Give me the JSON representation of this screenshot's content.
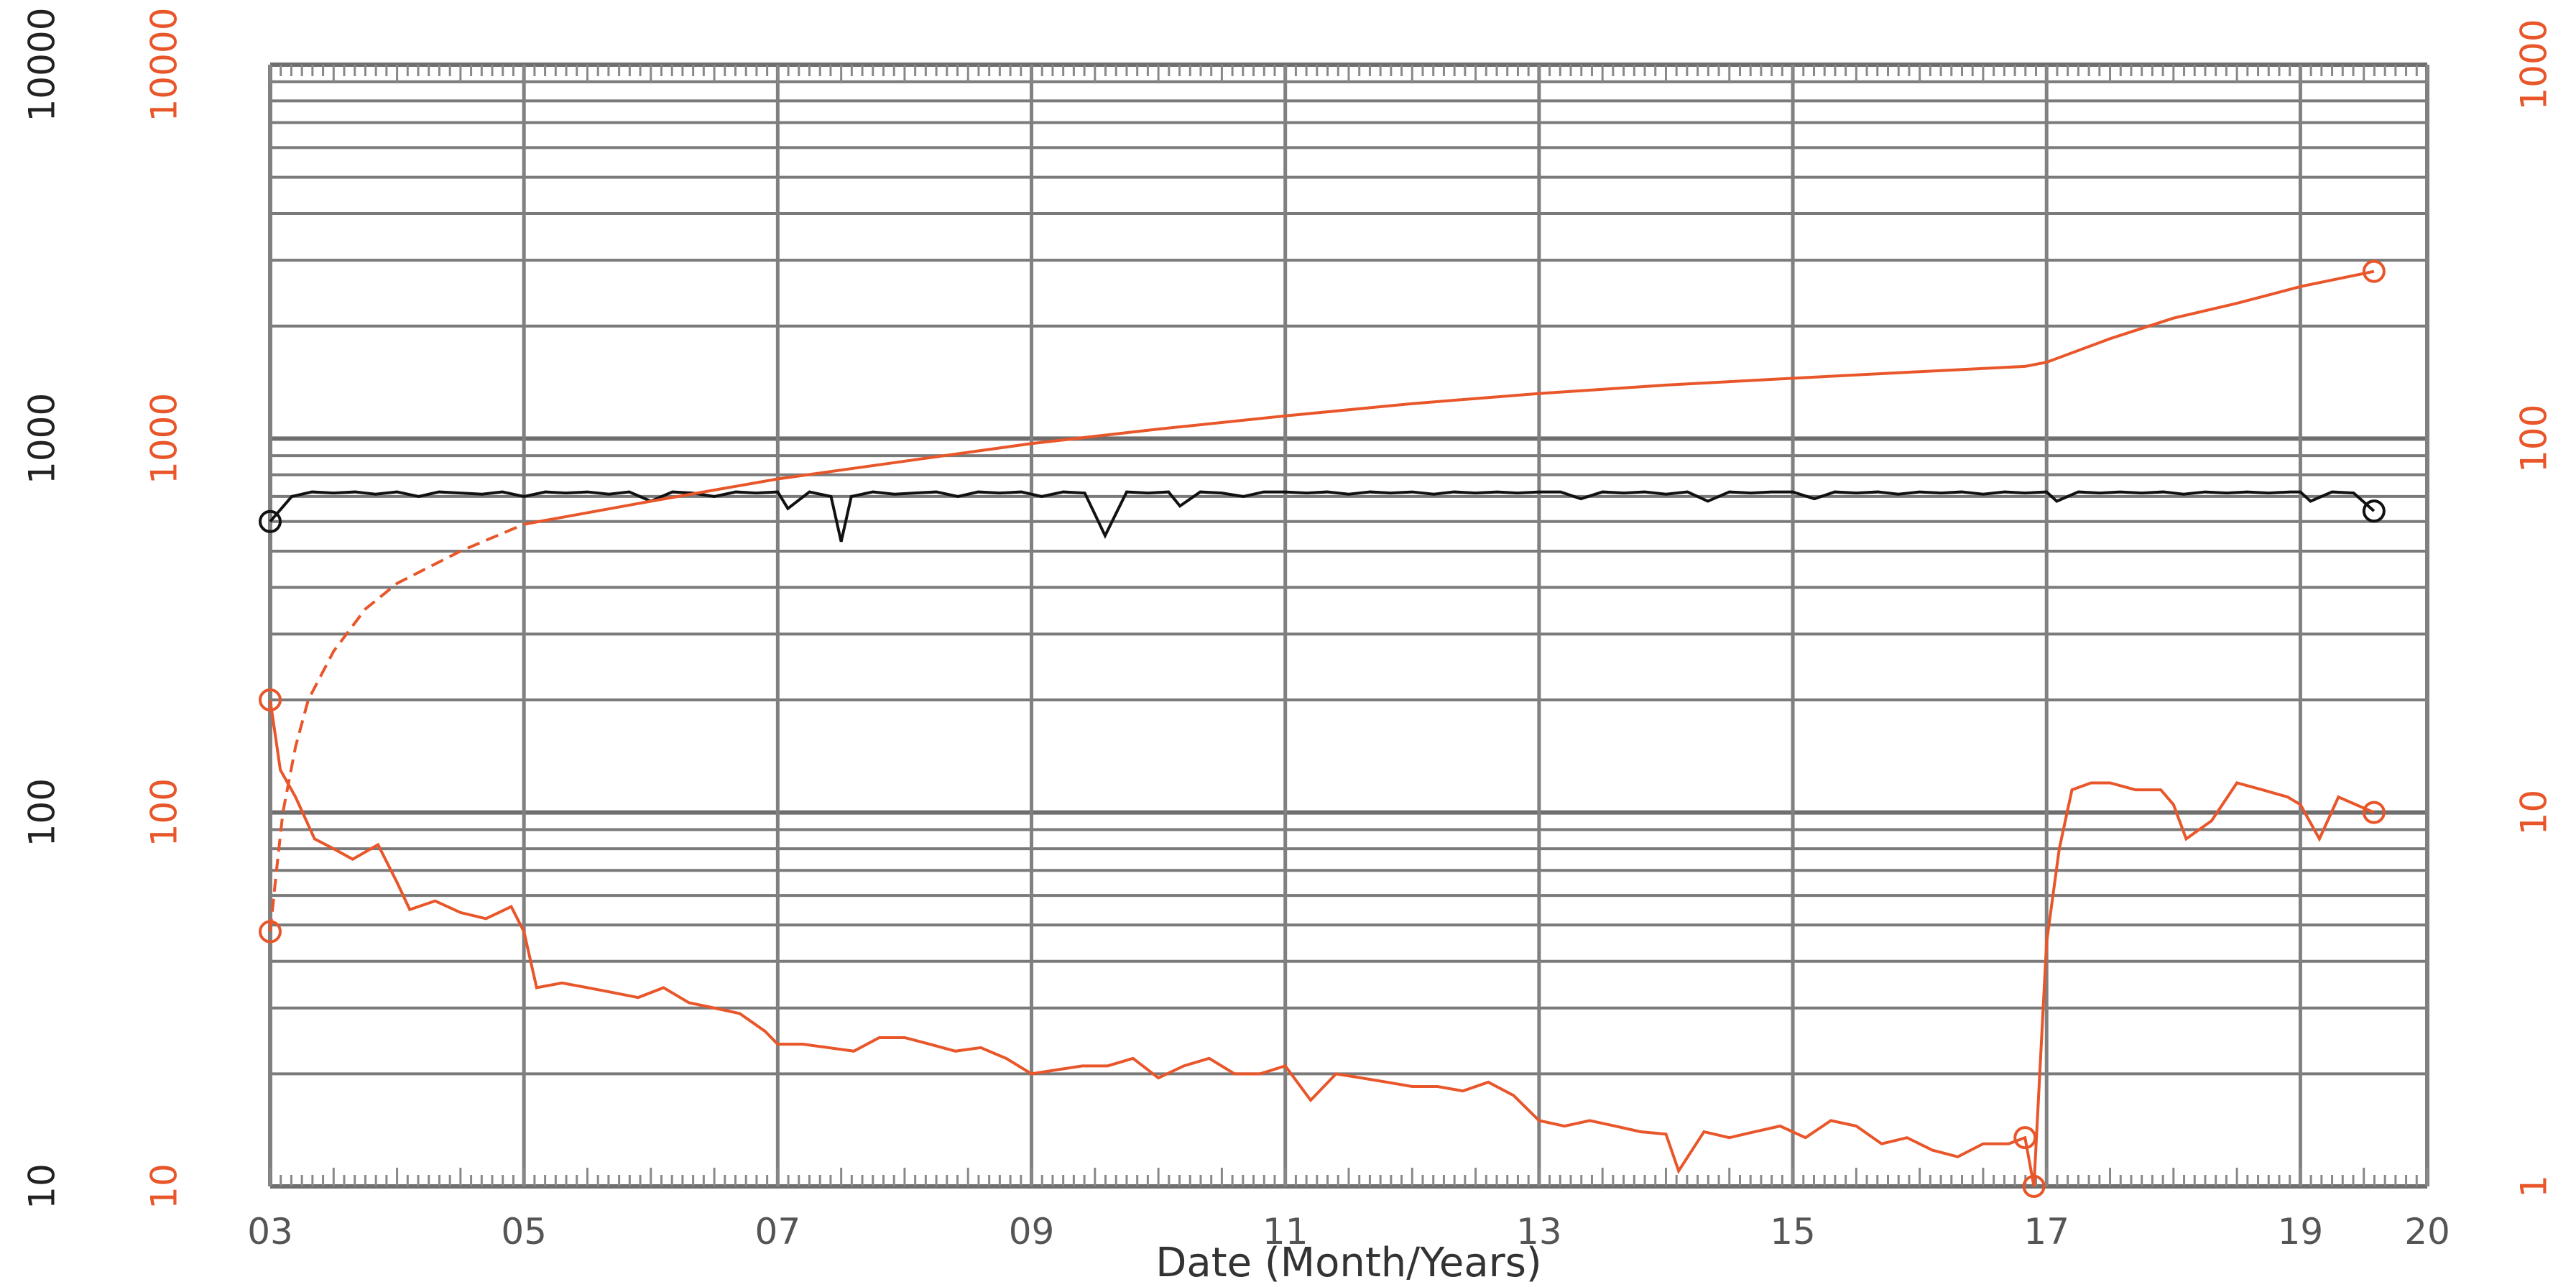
{
  "chart_data": {
    "type": "line",
    "title": "",
    "xlabel": "Date (Month/Years)",
    "x_axis": {
      "type": "date-years",
      "range": [
        2003.0,
        2020.0
      ],
      "tick_values": [
        2003,
        2005,
        2007,
        2009,
        2011,
        2013,
        2015,
        2017,
        2019,
        2020
      ],
      "tick_labels": [
        "03",
        "05",
        "07",
        "09",
        "11",
        "13",
        "15",
        "17",
        "19",
        "20"
      ]
    },
    "y_axes": [
      {
        "id": "left_black",
        "scale": "log",
        "range": [
          10,
          10000
        ],
        "color": "#222222",
        "tick_values": [
          10,
          100,
          1000,
          10000
        ],
        "tick_labels": [
          "10",
          "100",
          "1000",
          "10000"
        ]
      },
      {
        "id": "left_orange",
        "scale": "log",
        "range": [
          10,
          10000
        ],
        "color": "#e8562a",
        "tick_values": [
          10,
          100,
          1000,
          10000
        ],
        "tick_labels": [
          "10",
          "100",
          "1000",
          "10000"
        ]
      },
      {
        "id": "right_orange",
        "scale": "log",
        "range": [
          1,
          1000
        ],
        "color": "#e8562a",
        "tick_values": [
          1,
          10,
          100,
          1000
        ],
        "tick_labels": [
          "1",
          "10",
          "100",
          "1000"
        ]
      }
    ],
    "grid": true,
    "legend": "none",
    "series": [
      {
        "axis": "left_black",
        "color": "#111111",
        "style": "solid",
        "x": [
          2003.0,
          2003.17,
          2003.33,
          2003.5,
          2003.67,
          2003.83,
          2004.0,
          2004.17,
          2004.33,
          2004.5,
          2004.67,
          2004.83,
          2005.0,
          2005.17,
          2005.33,
          2005.5,
          2005.67,
          2005.83,
          2006.0,
          2006.17,
          2006.33,
          2006.5,
          2006.67,
          2006.83,
          2007.0,
          2007.08,
          2007.25,
          2007.42,
          2007.5,
          2007.58,
          2007.75,
          2007.92,
          2008.08,
          2008.25,
          2008.42,
          2008.58,
          2008.75,
          2008.92,
          2009.08,
          2009.25,
          2009.42,
          2009.58,
          2009.75,
          2009.92,
          2010.08,
          2010.17,
          2010.33,
          2010.5,
          2010.67,
          2010.83,
          2011.0,
          2011.17,
          2011.33,
          2011.5,
          2011.67,
          2011.83,
          2012.0,
          2012.17,
          2012.33,
          2012.5,
          2012.67,
          2012.83,
          2013.0,
          2013.17,
          2013.33,
          2013.5,
          2013.67,
          2013.83,
          2014.0,
          2014.17,
          2014.33,
          2014.5,
          2014.67,
          2014.83,
          2015.0,
          2015.17,
          2015.33,
          2015.5,
          2015.67,
          2015.83,
          2016.0,
          2016.17,
          2016.33,
          2016.5,
          2016.67,
          2016.83,
          2017.0,
          2017.08,
          2017.25,
          2017.42,
          2017.58,
          2017.75,
          2017.92,
          2018.08,
          2018.25,
          2018.42,
          2018.58,
          2018.75,
          2018.92,
          2019.0,
          2019.08,
          2019.25,
          2019.42,
          2019.58
        ],
        "y": [
          600,
          700,
          720,
          715,
          720,
          710,
          720,
          700,
          720,
          715,
          710,
          720,
          700,
          720,
          715,
          720,
          710,
          720,
          680,
          720,
          715,
          700,
          720,
          715,
          720,
          650,
          720,
          700,
          530,
          700,
          720,
          710,
          715,
          720,
          700,
          720,
          715,
          720,
          700,
          720,
          715,
          550,
          720,
          715,
          720,
          660,
          720,
          715,
          700,
          720,
          720,
          715,
          720,
          710,
          720,
          715,
          720,
          710,
          720,
          715,
          720,
          715,
          720,
          720,
          690,
          720,
          715,
          720,
          710,
          720,
          680,
          720,
          715,
          720,
          720,
          690,
          720,
          715,
          720,
          710,
          720,
          715,
          720,
          710,
          720,
          715,
          720,
          680,
          720,
          715,
          720,
          715,
          720,
          710,
          720,
          715,
          720,
          715,
          720,
          720,
          680,
          720,
          715,
          640
        ]
      },
      {
        "axis": "left_orange",
        "color": "#e8562a",
        "style": "dashed-then-solid",
        "x": [
          2003.0,
          2003.05,
          2003.1,
          2003.2,
          2003.3,
          2003.5,
          2003.75,
          2004.0,
          2004.5,
          2005.0,
          2006.0,
          2007.0,
          2008.0,
          2009.0,
          2010.0,
          2011.0,
          2012.0,
          2013.0,
          2014.0,
          2015.0,
          2016.0,
          2016.83,
          2017.0,
          2017.5,
          2018.0,
          2018.5,
          2019.0,
          2019.58
        ],
        "y": [
          48,
          70,
          100,
          150,
          200,
          270,
          350,
          410,
          500,
          590,
          680,
          780,
          870,
          970,
          1060,
          1150,
          1240,
          1320,
          1390,
          1450,
          1510,
          1560,
          1600,
          1850,
          2100,
          2300,
          2550,
          2800
        ]
      },
      {
        "axis": "right_orange",
        "color": "#e8562a",
        "style": "solid",
        "x": [
          2003.0,
          2003.08,
          2003.2,
          2003.35,
          2003.5,
          2003.65,
          2003.85,
          2004.0,
          2004.1,
          2004.3,
          2004.5,
          2004.7,
          2004.9,
          2005.0,
          2005.1,
          2005.3,
          2005.5,
          2005.7,
          2005.9,
          2006.1,
          2006.3,
          2006.5,
          2006.7,
          2006.9,
          2007.0,
          2007.2,
          2007.4,
          2007.6,
          2007.8,
          2008.0,
          2008.2,
          2008.4,
          2008.6,
          2008.8,
          2009.0,
          2009.2,
          2009.4,
          2009.6,
          2009.8,
          2010.0,
          2010.2,
          2010.4,
          2010.6,
          2010.8,
          2011.0,
          2011.2,
          2011.4,
          2011.6,
          2011.8,
          2012.0,
          2012.2,
          2012.4,
          2012.6,
          2012.8,
          2013.0,
          2013.2,
          2013.4,
          2013.6,
          2013.8,
          2014.0,
          2014.1,
          2014.3,
          2014.5,
          2014.7,
          2014.9,
          2015.1,
          2015.3,
          2015.5,
          2015.7,
          2015.9,
          2016.1,
          2016.3,
          2016.5,
          2016.7,
          2016.83,
          2016.9,
          2017.0,
          2017.1,
          2017.2,
          2017.35,
          2017.5,
          2017.7,
          2017.9,
          2018.0,
          2018.1,
          2018.3,
          2018.5,
          2018.7,
          2018.9,
          2019.0,
          2019.15,
          2019.3,
          2019.58
        ],
        "y": [
          20,
          13,
          11,
          8.5,
          8,
          7.5,
          8.2,
          6.5,
          5.5,
          5.8,
          5.4,
          5.2,
          5.6,
          4.8,
          3.4,
          3.5,
          3.4,
          3.3,
          3.2,
          3.4,
          3.1,
          3.0,
          2.9,
          2.6,
          2.4,
          2.4,
          2.35,
          2.3,
          2.5,
          2.5,
          2.4,
          2.3,
          2.35,
          2.2,
          2.0,
          2.05,
          2.1,
          2.1,
          2.2,
          1.95,
          2.1,
          2.2,
          2.0,
          2.0,
          2.1,
          1.7,
          2.0,
          1.95,
          1.9,
          1.85,
          1.85,
          1.8,
          1.9,
          1.75,
          1.5,
          1.45,
          1.5,
          1.45,
          1.4,
          1.38,
          1.1,
          1.4,
          1.35,
          1.4,
          1.45,
          1.35,
          1.5,
          1.45,
          1.3,
          1.35,
          1.25,
          1.2,
          1.3,
          1.3,
          1.35,
          1.0,
          4.5,
          8.0,
          11.5,
          12.0,
          12.0,
          11.5,
          11.5,
          10.5,
          8.5,
          9.5,
          12.0,
          11.5,
          11.0,
          10.5,
          8.5,
          11.0,
          10.0
        ]
      }
    ]
  }
}
